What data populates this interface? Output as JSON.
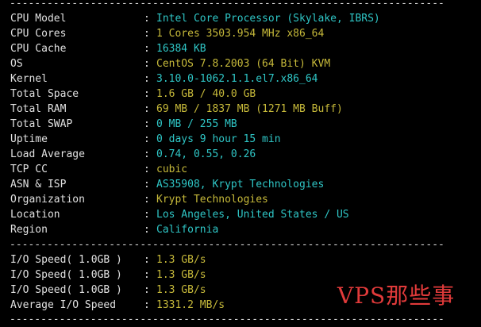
{
  "separator": "----------------------------------------------------------------------",
  "system_info": [
    {
      "label": "CPU Model",
      "value": "Intel Core Processor (Skylake, IBRS)",
      "color": "cyan"
    },
    {
      "label": "CPU Cores",
      "value": "1 Cores 3503.954 MHz x86_64",
      "color": "yellow"
    },
    {
      "label": "CPU Cache",
      "value": "16384 KB",
      "color": "cyan"
    },
    {
      "label": "OS",
      "value": "CentOS 7.8.2003 (64 Bit) KVM",
      "color": "yellow"
    },
    {
      "label": "Kernel",
      "value": "3.10.0-1062.1.1.el7.x86_64",
      "color": "cyan"
    },
    {
      "label": "Total Space",
      "value": "1.6 GB / 40.0 GB",
      "color": "yellow"
    },
    {
      "label": "Total RAM",
      "value": "69 MB / 1837 MB (1271 MB Buff)",
      "color": "yellow"
    },
    {
      "label": "Total SWAP",
      "value": "0 MB / 255 MB",
      "color": "cyan"
    },
    {
      "label": "Uptime",
      "value": "0 days 9 hour 15 min",
      "color": "cyan"
    },
    {
      "label": "Load Average",
      "value": "0.74, 0.55, 0.26",
      "color": "cyan"
    },
    {
      "label": "TCP CC",
      "value": "cubic",
      "color": "yellow"
    },
    {
      "label": "ASN & ISP",
      "value": "AS35908, Krypt Technologies",
      "color": "cyan"
    },
    {
      "label": "Organization",
      "value": "Krypt Technologies",
      "color": "yellow"
    },
    {
      "label": "Location",
      "value": "Los Angeles, United States / US",
      "color": "cyan"
    },
    {
      "label": "Region",
      "value": "California",
      "color": "cyan"
    }
  ],
  "io_tests": [
    {
      "label": "I/O Speed( 1.0GB )",
      "value": "1.3 GB/s",
      "color": "yellow"
    },
    {
      "label": "I/O Speed( 1.0GB )",
      "value": "1.3 GB/s",
      "color": "yellow"
    },
    {
      "label": "I/O Speed( 1.0GB )",
      "value": "1.3 GB/s",
      "color": "yellow"
    },
    {
      "label": "Average I/O Speed",
      "value": "1331.2 MB/s",
      "color": "yellow"
    }
  ],
  "colon": ":",
  "watermark": "VPS那些事",
  "colors": {
    "background": "#000000",
    "label": "#e0e0e0",
    "cyan": "#2fc6c6",
    "yellow": "#c6b93a",
    "watermark": "#e03a3a"
  }
}
